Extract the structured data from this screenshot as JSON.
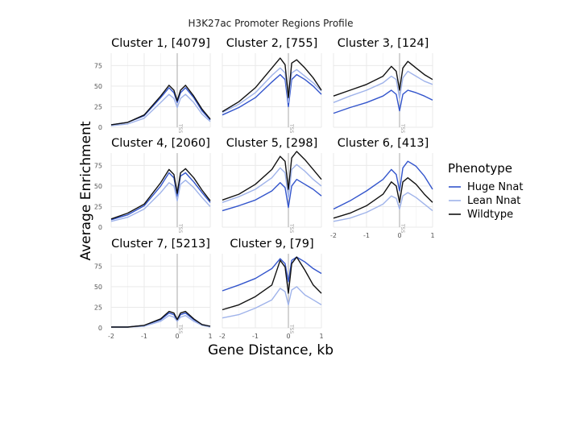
{
  "chart_data": {
    "type": "line",
    "title": "H3K27ac Promoter Regions Profile",
    "xlabel": "Gene Distance, kb",
    "ylabel": "Average Enrichment",
    "xlim": [
      -2,
      1
    ],
    "ylim": [
      0,
      90
    ],
    "x_ticks": [
      "-2",
      "-1",
      "0",
      "1"
    ],
    "y_ticks": [
      "0",
      "25",
      "50",
      "75"
    ],
    "tss_label": "TSS",
    "grid": true,
    "legend": {
      "title": "Phenotype",
      "position": "right",
      "entries": [
        {
          "name": "Huge Nnat",
          "color": "#3355cc"
        },
        {
          "name": "Lean Nnat",
          "color": "#9fb3ea"
        },
        {
          "name": "Wildtype",
          "color": "#111111"
        }
      ]
    },
    "x": [
      -2.0,
      -1.5,
      -1.0,
      -0.5,
      -0.25,
      -0.1,
      0.0,
      0.1,
      0.25,
      0.5,
      0.75,
      1.0
    ],
    "panels": [
      {
        "title": "Cluster 1, [4079]",
        "series": [
          {
            "name": "Huge Nnat",
            "values": [
              3,
              6,
              14,
              36,
              48,
              42,
              30,
              42,
              48,
              36,
              20,
              9
            ]
          },
          {
            "name": "Lean Nnat",
            "values": [
              2,
              4,
              11,
              30,
              40,
              35,
              24,
              35,
              40,
              30,
              16,
              7
            ]
          },
          {
            "name": "Wildtype",
            "values": [
              3,
              6,
              15,
              38,
              51,
              45,
              32,
              45,
              51,
              38,
              22,
              10
            ]
          }
        ]
      },
      {
        "title": "Cluster 2, [755]",
        "series": [
          {
            "name": "Huge Nnat",
            "values": [
              15,
              24,
              36,
              55,
              64,
              58,
              25,
              58,
              64,
              58,
              50,
              40
            ]
          },
          {
            "name": "Lean Nnat",
            "values": [
              18,
              28,
              42,
              63,
              72,
              66,
              30,
              66,
              70,
              62,
              54,
              44
            ]
          },
          {
            "name": "Wildtype",
            "values": [
              19,
              31,
              48,
              72,
              84,
              76,
              36,
              78,
              82,
              72,
              60,
              45
            ]
          }
        ]
      },
      {
        "title": "Cluster 3, [124]",
        "series": [
          {
            "name": "Huge Nnat",
            "values": [
              17,
              24,
              30,
              38,
              45,
              40,
              20,
              40,
              45,
              42,
              38,
              33
            ]
          },
          {
            "name": "Lean Nnat",
            "values": [
              30,
              38,
              45,
              54,
              62,
              58,
              35,
              60,
              68,
              62,
              56,
              52
            ]
          },
          {
            "name": "Wildtype",
            "values": [
              38,
              45,
              52,
              62,
              74,
              68,
              45,
              72,
              80,
              72,
              64,
              58
            ]
          }
        ]
      },
      {
        "title": "Cluster 4, [2060]",
        "series": [
          {
            "name": "Huge Nnat",
            "values": [
              9,
              15,
              26,
              50,
              66,
              60,
              38,
              62,
              66,
              55,
              42,
              30
            ]
          },
          {
            "name": "Lean Nnat",
            "values": [
              7,
              12,
              22,
              42,
              54,
              50,
              32,
              52,
              57,
              48,
              36,
              25
            ]
          },
          {
            "name": "Wildtype",
            "values": [
              10,
              17,
              28,
              54,
              70,
              64,
              41,
              66,
              71,
              60,
              45,
              32
            ]
          }
        ]
      },
      {
        "title": "Cluster 5, [298]",
        "series": [
          {
            "name": "Huge Nnat",
            "values": [
              20,
              26,
              33,
              44,
              54,
              48,
              24,
              50,
              58,
              52,
              46,
              38
            ]
          },
          {
            "name": "Lean Nnat",
            "values": [
              30,
              37,
              46,
              60,
              72,
              66,
              36,
              70,
              76,
              68,
              58,
              50
            ]
          },
          {
            "name": "Wildtype",
            "values": [
              33,
              40,
              52,
              70,
              86,
              80,
              46,
              84,
              92,
              82,
              70,
              58
            ]
          }
        ]
      },
      {
        "title": "Cluster 6, [413]",
        "series": [
          {
            "name": "Huge Nnat",
            "values": [
              22,
              32,
              44,
              58,
              70,
              64,
              44,
              72,
              80,
              74,
              62,
              46
            ]
          },
          {
            "name": "Lean Nnat",
            "values": [
              7,
              11,
              18,
              28,
              38,
              35,
              22,
              38,
              42,
              36,
              28,
              20
            ]
          },
          {
            "name": "Wildtype",
            "values": [
              11,
              17,
              26,
              40,
              55,
              50,
              30,
              55,
              60,
              52,
              40,
              30
            ]
          }
        ]
      },
      {
        "title": "Cluster 7, [5213]",
        "series": [
          {
            "name": "Huge Nnat",
            "values": [
              1,
              1,
              3,
              10,
              18,
              16,
              9,
              16,
              18,
              10,
              4,
              2
            ]
          },
          {
            "name": "Lean Nnat",
            "values": [
              1,
              1,
              2,
              8,
              15,
              13,
              8,
              13,
              15,
              8,
              3,
              1
            ]
          },
          {
            "name": "Wildtype",
            "values": [
              1,
              1,
              3,
              11,
              20,
              18,
              10,
              18,
              20,
              11,
              4,
              2
            ]
          }
        ]
      },
      {
        "title": "Cluster 9, [79]",
        "series": [
          {
            "name": "Huge Nnat",
            "values": [
              45,
              52,
              60,
              72,
              84,
              78,
              56,
              82,
              86,
              80,
              72,
              66
            ]
          },
          {
            "name": "Lean Nnat",
            "values": [
              12,
              16,
              24,
              34,
              48,
              44,
              28,
              46,
              50,
              40,
              34,
              28
            ]
          },
          {
            "name": "Wildtype",
            "values": [
              22,
              28,
              38,
              52,
              82,
              74,
              42,
              78,
              86,
              70,
              52,
              42
            ]
          }
        ]
      }
    ]
  }
}
